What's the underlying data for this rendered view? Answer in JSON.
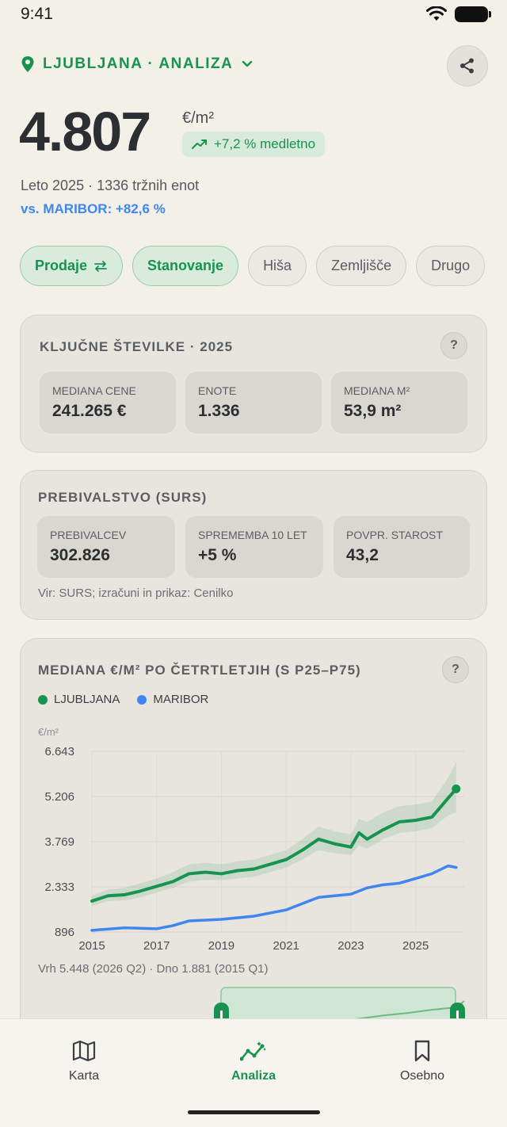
{
  "status": {
    "time": "9:41"
  },
  "header": {
    "location": "LJUBLJANA · ANALIZA"
  },
  "hero": {
    "value": "4.807",
    "unit": "€/m²",
    "trend": "+7,2 % medletno",
    "meta": "Leto 2025 · 1336 tržnih enot",
    "vs": "vs. MARIBOR: +82,6 %"
  },
  "chips": [
    {
      "label": "Prodaje",
      "active": true
    },
    {
      "label": "Stanovanje",
      "active": true
    },
    {
      "label": "Hiša",
      "active": false
    },
    {
      "label": "Zemljišče",
      "active": false
    },
    {
      "label": "Drugo",
      "active": false
    }
  ],
  "key_numbers": {
    "title": "KLJUČNE ŠTEVILKE · 2025",
    "help": "?",
    "stats": [
      {
        "label": "MEDIANA CENE",
        "value": "241.265 €"
      },
      {
        "label": "ENOTE",
        "value": "1.336"
      },
      {
        "label": "MEDIANA M²",
        "value": "53,9 m²"
      }
    ]
  },
  "population": {
    "title": "PREBIVALSTVO (SURS)",
    "stats": [
      {
        "label": "PREBIVALCEV",
        "value": "302.826"
      },
      {
        "label": "SPREMEMBA 10 LET",
        "value": "+5 %"
      },
      {
        "label": "POVPR. STAROST",
        "value": "43,2"
      }
    ],
    "source": "Vir: SURS; izračuni in prikaz: Cenilko"
  },
  "chart_card": {
    "title": "MEDIANA €/M² PO ČETRTLETJIH (S P25–P75)",
    "help": "?",
    "range_note": "Vrh 5.448 (2026 Q2) · Dno 1.881 (2015 Q1)"
  },
  "colors": {
    "ljubljana": "#17934f",
    "maribor": "#3f86f0",
    "accent": "#17934f"
  },
  "chart_data": {
    "type": "line",
    "ylabel": "€/m²",
    "ylim": [
      896,
      6643
    ],
    "yticks": [
      "6.643",
      "5.206",
      "3.769",
      "2.333",
      "896"
    ],
    "ytick_values": [
      6643,
      5206,
      3769,
      2333,
      896
    ],
    "xticks": [
      "2015",
      "2017",
      "2019",
      "2021",
      "2023",
      "2025"
    ],
    "xtick_values": [
      2015,
      2017,
      2019,
      2021,
      2023,
      2025
    ],
    "xlim": [
      2015,
      2026.5
    ],
    "series": [
      {
        "name": "LJUBLJANA",
        "x": [
          2015,
          2015.5,
          2016,
          2016.5,
          2017,
          2017.5,
          2018,
          2018.5,
          2019,
          2019.5,
          2020,
          2020.5,
          2021,
          2021.5,
          2022,
          2022.5,
          2023,
          2023.25,
          2023.5,
          2024,
          2024.5,
          2025,
          2025.5,
          2026,
          2026.25
        ],
        "values": [
          1881,
          2050,
          2080,
          2200,
          2350,
          2500,
          2750,
          2800,
          2750,
          2850,
          2900,
          3050,
          3200,
          3500,
          3850,
          3700,
          3600,
          4050,
          3850,
          4150,
          4400,
          4450,
          4550,
          5150,
          5448
        ],
        "p25": [
          1720,
          1880,
          1900,
          2000,
          2150,
          2300,
          2500,
          2550,
          2550,
          2600,
          2650,
          2800,
          2950,
          3200,
          3500,
          3400,
          3350,
          3650,
          3550,
          3850,
          4050,
          4100,
          4200,
          4600,
          4700
        ],
        "p75": [
          2050,
          2250,
          2300,
          2450,
          2600,
          2800,
          3050,
          3100,
          3050,
          3150,
          3200,
          3350,
          3500,
          3850,
          4250,
          4100,
          4000,
          4500,
          4400,
          4700,
          4900,
          4950,
          5050,
          5800,
          6300
        ]
      },
      {
        "name": "MARIBOR",
        "x": [
          2015,
          2016,
          2017,
          2017.5,
          2018,
          2019,
          2020,
          2021,
          2021.5,
          2022,
          2023,
          2023.5,
          2024,
          2024.5,
          2025,
          2025.5,
          2026,
          2026.25
        ],
        "values": [
          950,
          1030,
          1000,
          1100,
          1250,
          1300,
          1400,
          1600,
          1800,
          2000,
          2100,
          2300,
          2400,
          2450,
          2600,
          2750,
          3000,
          2950
        ]
      }
    ]
  },
  "nav": {
    "items": [
      {
        "label": "Karta",
        "icon": "map-icon",
        "active": false
      },
      {
        "label": "Analiza",
        "icon": "analytics-icon",
        "active": true
      },
      {
        "label": "Osebno",
        "icon": "bookmark-icon",
        "active": false
      }
    ]
  }
}
